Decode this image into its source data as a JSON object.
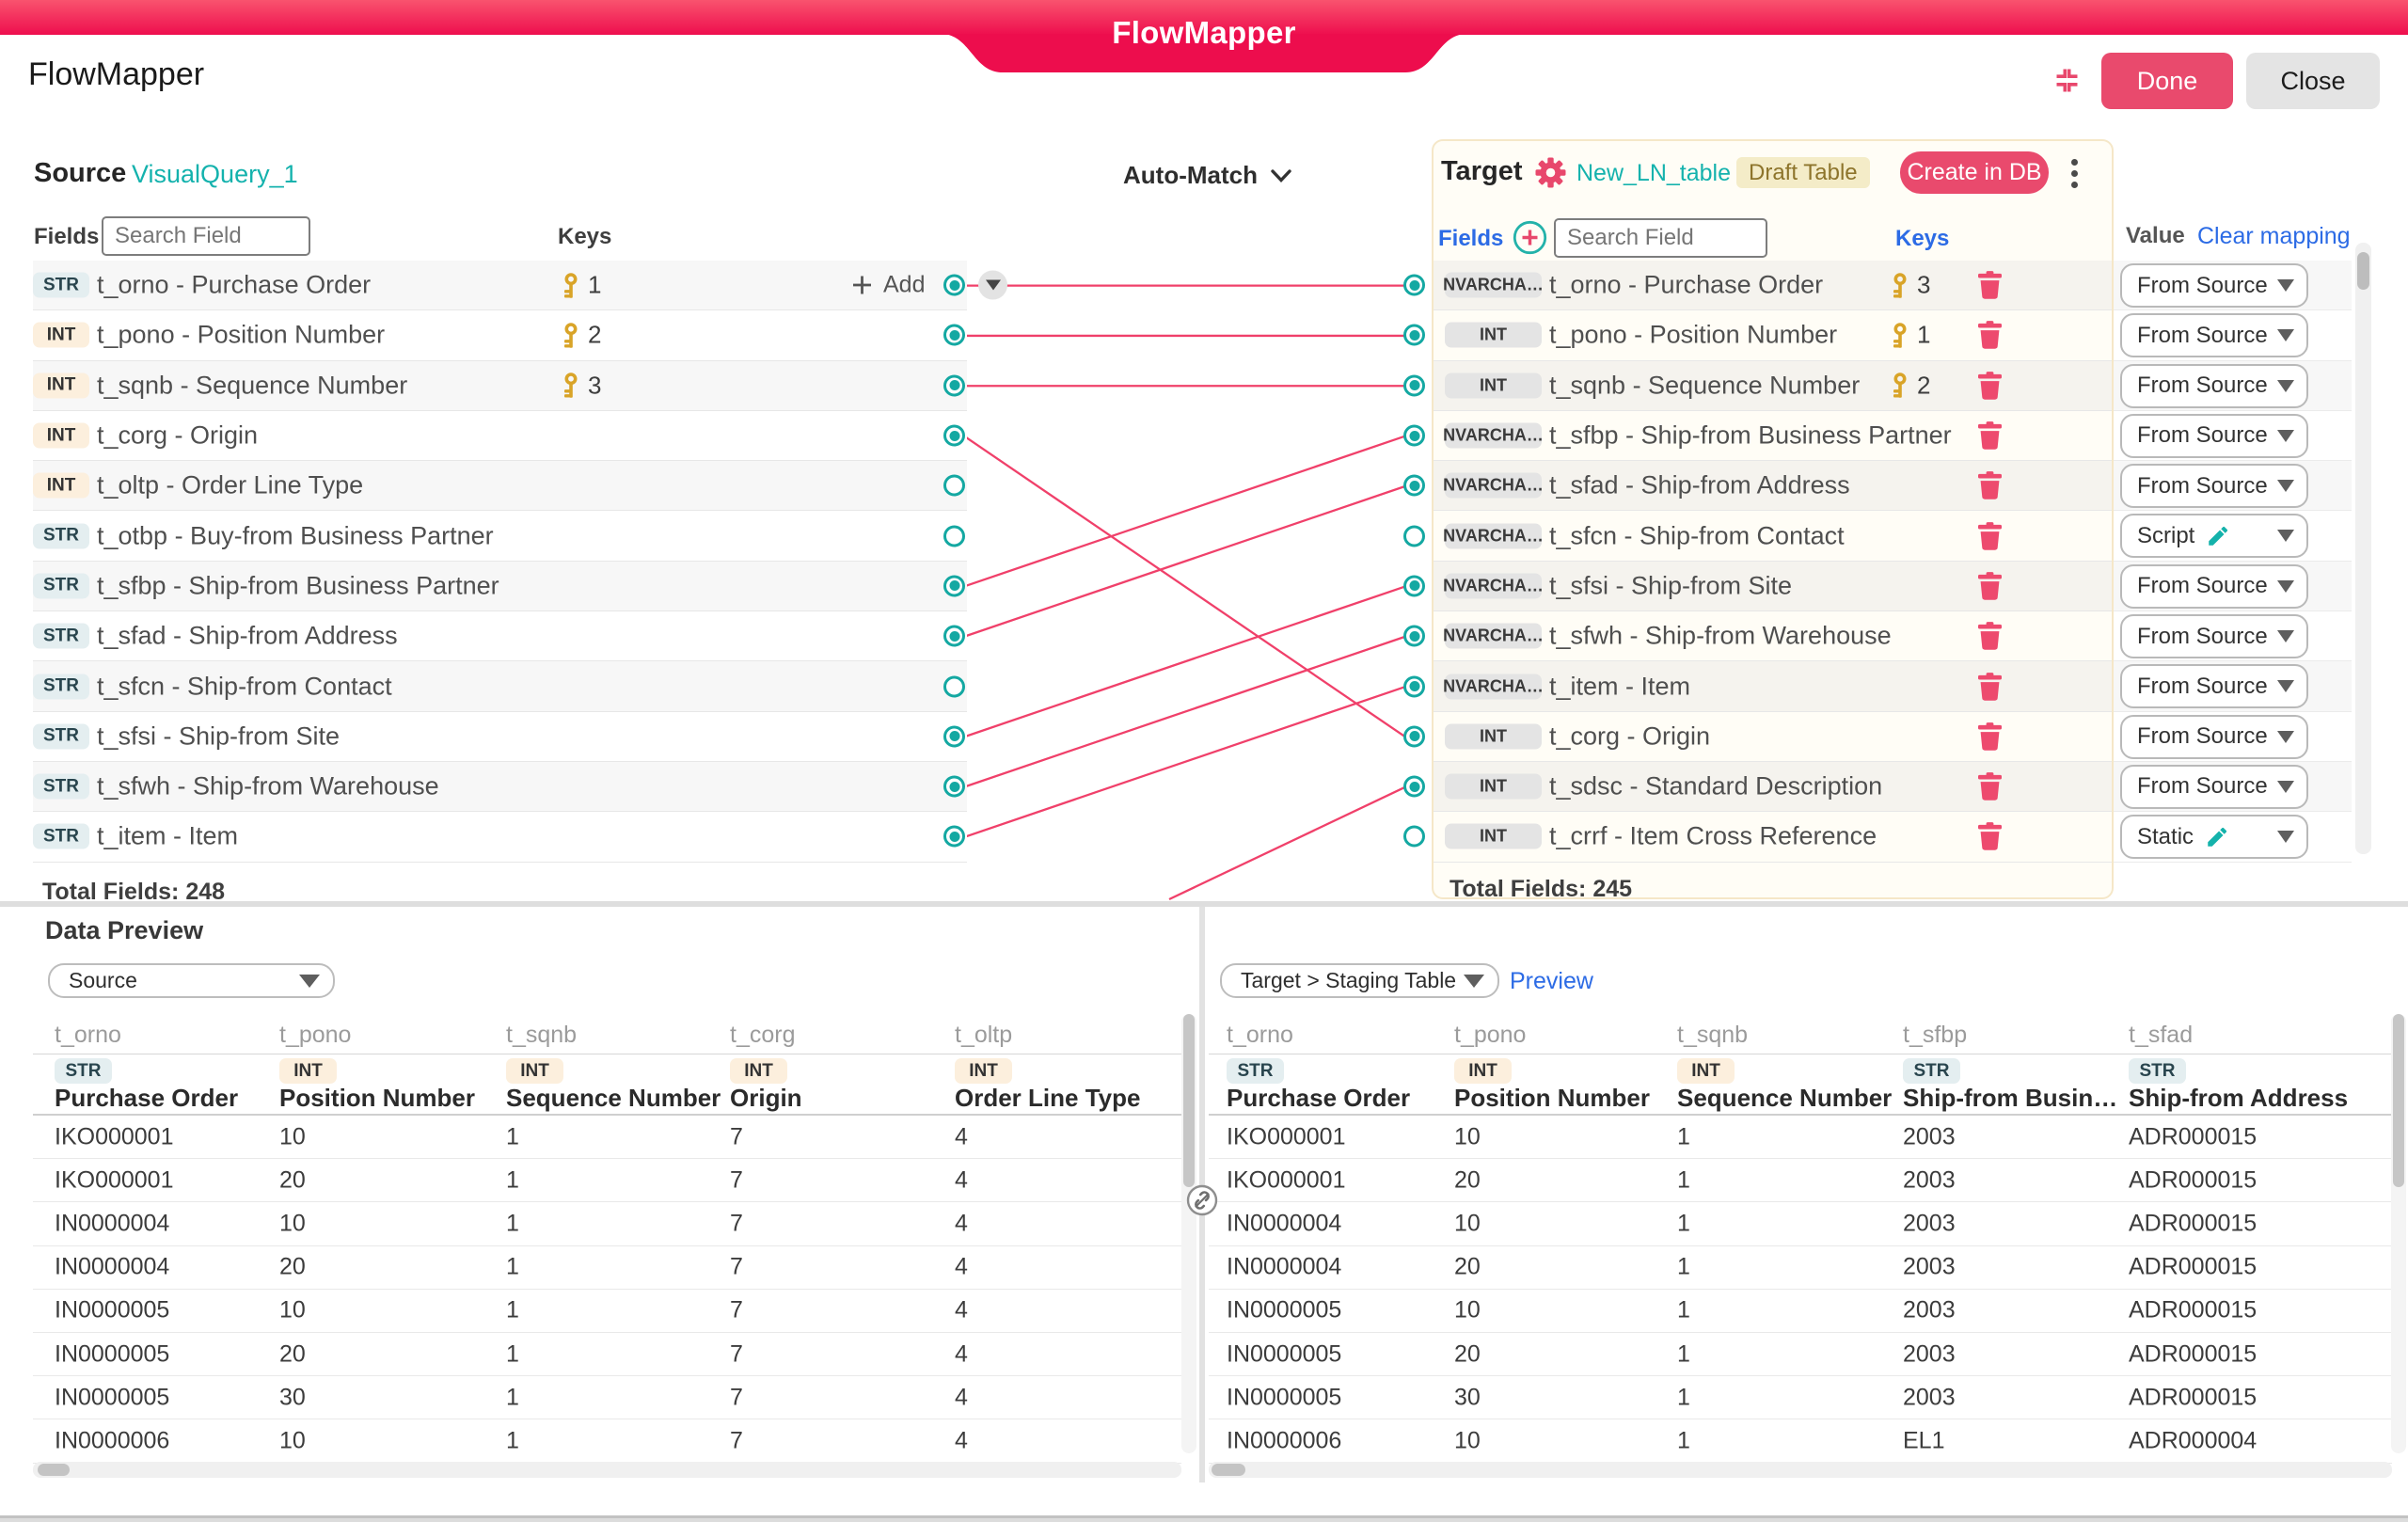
{
  "window": {
    "tab_title": "FlowMapper",
    "title": "FlowMapper",
    "done_label": "Done",
    "close_label": "Close"
  },
  "toolbar": {
    "auto_match_label": "Auto-Match"
  },
  "colors": {
    "accent_pink": "#E94A6D",
    "ribbon_top": "#F9536E",
    "ribbon_bottom": "#EE0E4E",
    "teal": "#14B2AD",
    "blue": "#2C6BE5",
    "connection_line": "#F0406A",
    "key_gold": "#D9A428"
  },
  "source_panel": {
    "title": "Source",
    "query_name": "VisualQuery_1",
    "fields_label": "Fields",
    "search_placeholder": "Search Field",
    "keys_label": "Keys",
    "add_label": "Add",
    "total_label": "Total Fields: 248",
    "rows": [
      {
        "type": "STR",
        "name": "t_orno - Purchase Order",
        "key": "1",
        "connected": true,
        "has_add": true
      },
      {
        "type": "INT",
        "name": "t_pono - Position Number",
        "key": "2",
        "connected": true
      },
      {
        "type": "INT",
        "name": "t_sqnb - Sequence Number",
        "key": "3",
        "connected": true
      },
      {
        "type": "INT",
        "name": "t_corg - Origin",
        "connected": true
      },
      {
        "type": "INT",
        "name": "t_oltp - Order Line Type",
        "connected": false
      },
      {
        "type": "STR",
        "name": "t_otbp - Buy-from Business Partner",
        "connected": false
      },
      {
        "type": "STR",
        "name": "t_sfbp - Ship-from Business Partner",
        "connected": true
      },
      {
        "type": "STR",
        "name": "t_sfad - Ship-from Address",
        "connected": true
      },
      {
        "type": "STR",
        "name": "t_sfcn - Ship-from Contact",
        "connected": false
      },
      {
        "type": "STR",
        "name": "t_sfsi - Ship-from Site",
        "connected": true
      },
      {
        "type": "STR",
        "name": "t_sfwh - Ship-from Warehouse",
        "connected": true
      },
      {
        "type": "STR",
        "name": "t_item - Item",
        "connected": true
      }
    ]
  },
  "target_panel": {
    "title": "Target",
    "table_name": "New_LN_table",
    "draft_badge": "Draft Table",
    "create_button": "Create in DB",
    "fields_label": "Fields",
    "search_placeholder": "Search Field",
    "keys_label": "Keys",
    "value_label": "Value",
    "clear_mapping_label": "Clear mapping",
    "total_label": "Total Fields: 245",
    "rows": [
      {
        "type": "NVARCHA…",
        "name": "t_orno - Purchase Order",
        "key": "3",
        "connected": true,
        "value": "From Source"
      },
      {
        "type": "INT",
        "name": "t_pono - Position Number",
        "key": "1",
        "connected": true,
        "value": "From Source"
      },
      {
        "type": "INT",
        "name": "t_sqnb - Sequence Number",
        "key": "2",
        "connected": true,
        "value": "From Source"
      },
      {
        "type": "NVARCHA…",
        "name": "t_sfbp - Ship-from Business Partner",
        "connected": true,
        "value": "From Source"
      },
      {
        "type": "NVARCHA…",
        "name": "t_sfad - Ship-from Address",
        "connected": true,
        "value": "From Source"
      },
      {
        "type": "NVARCHA…",
        "name": "t_sfcn - Ship-from Contact",
        "connected": false,
        "value": "Script",
        "editable": true
      },
      {
        "type": "NVARCHA…",
        "name": "t_sfsi - Ship-from Site",
        "connected": true,
        "value": "From Source"
      },
      {
        "type": "NVARCHA…",
        "name": "t_sfwh - Ship-from Warehouse",
        "connected": true,
        "value": "From Source"
      },
      {
        "type": "NVARCHA…",
        "name": "t_item - Item",
        "connected": true,
        "value": "From Source"
      },
      {
        "type": "INT",
        "name": "t_corg - Origin",
        "connected": true,
        "value": "From Source"
      },
      {
        "type": "INT",
        "name": "t_sdsc - Standard Description",
        "connected": true,
        "value": "From Source"
      },
      {
        "type": "INT",
        "name": "t_crrf - Item Cross Reference",
        "connected": false,
        "value": "Static",
        "editable": true
      }
    ]
  },
  "connections": {
    "pairs": [
      [
        1,
        1
      ],
      [
        2,
        2
      ],
      [
        3,
        3
      ],
      [
        4,
        10
      ],
      [
        7,
        4
      ],
      [
        8,
        5
      ],
      [
        10,
        7
      ],
      [
        11,
        8
      ],
      [
        12,
        9
      ]
    ],
    "partial_to_target_row": 11
  },
  "data_preview": {
    "title": "Data Preview",
    "left": {
      "selector_value": "Source",
      "columns": [
        {
          "field": "t_orno",
          "type": "STR",
          "label": "Purchase Order"
        },
        {
          "field": "t_pono",
          "type": "INT",
          "label": "Position Number"
        },
        {
          "field": "t_sqnb",
          "type": "INT",
          "label": "Sequence Number"
        },
        {
          "field": "t_corg",
          "type": "INT",
          "label": "Origin"
        },
        {
          "field": "t_oltp",
          "type": "INT",
          "label": "Order Line Type"
        }
      ],
      "rows": [
        [
          "IKO000001",
          "10",
          "1",
          "7",
          "4"
        ],
        [
          "IKO000001",
          "20",
          "1",
          "7",
          "4"
        ],
        [
          "IN0000004",
          "10",
          "1",
          "7",
          "4"
        ],
        [
          "IN0000004",
          "20",
          "1",
          "7",
          "4"
        ],
        [
          "IN0000005",
          "10",
          "1",
          "7",
          "4"
        ],
        [
          "IN0000005",
          "20",
          "1",
          "7",
          "4"
        ],
        [
          "IN0000005",
          "30",
          "1",
          "7",
          "4"
        ],
        [
          "IN0000006",
          "10",
          "1",
          "7",
          "4"
        ]
      ]
    },
    "right": {
      "selector_value": "Target > Staging Table",
      "preview_label": "Preview",
      "columns": [
        {
          "field": "t_orno",
          "type": "STR",
          "label": "Purchase Order"
        },
        {
          "field": "t_pono",
          "type": "INT",
          "label": "Position Number"
        },
        {
          "field": "t_sqnb",
          "type": "INT",
          "label": "Sequence Number"
        },
        {
          "field": "t_sfbp",
          "type": "STR",
          "label": "Ship-from Business …"
        },
        {
          "field": "t_sfad",
          "type": "STR",
          "label": "Ship-from Address"
        }
      ],
      "rows": [
        [
          "IKO000001",
          "10",
          "1",
          "2003",
          "ADR000015"
        ],
        [
          "IKO000001",
          "20",
          "1",
          "2003",
          "ADR000015"
        ],
        [
          "IN0000004",
          "10",
          "1",
          "2003",
          "ADR000015"
        ],
        [
          "IN0000004",
          "20",
          "1",
          "2003",
          "ADR000015"
        ],
        [
          "IN0000005",
          "10",
          "1",
          "2003",
          "ADR000015"
        ],
        [
          "IN0000005",
          "20",
          "1",
          "2003",
          "ADR000015"
        ],
        [
          "IN0000005",
          "30",
          "1",
          "2003",
          "ADR000015"
        ],
        [
          "IN0000006",
          "10",
          "1",
          "EL1",
          "ADR000004"
        ]
      ]
    }
  }
}
